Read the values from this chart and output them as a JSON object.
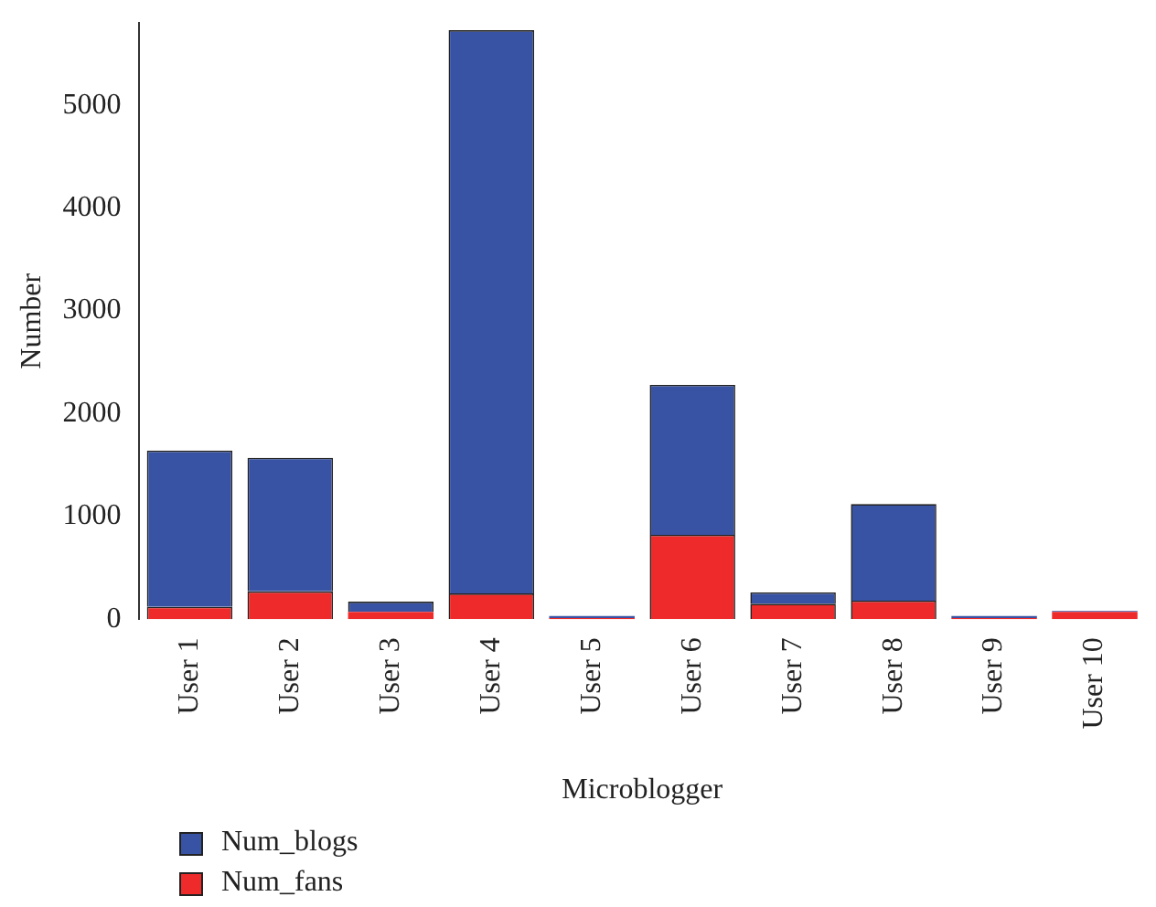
{
  "chart_data": {
    "type": "bar",
    "stacked": true,
    "xlabel": "Microblogger",
    "ylabel": "Number",
    "categories": [
      "User 1",
      "User 2",
      "User 3",
      "User 4",
      "User 5",
      "User 6",
      "User 7",
      "User 8",
      "User 9",
      "User 10"
    ],
    "series": [
      {
        "name": "Num_fans",
        "color": "#ee2a2a",
        "values": [
          120,
          270,
          70,
          250,
          10,
          820,
          150,
          180,
          10,
          70
        ]
      },
      {
        "name": "Num_blogs",
        "color": "#3953a4",
        "values": [
          1520,
          1300,
          100,
          5480,
          20,
          1460,
          110,
          940,
          20,
          10
        ]
      }
    ],
    "ylim": [
      0,
      5800
    ],
    "yticks": [
      0,
      1000,
      2000,
      3000,
      4000,
      5000
    ],
    "grid": false,
    "legend": "bottom left"
  }
}
